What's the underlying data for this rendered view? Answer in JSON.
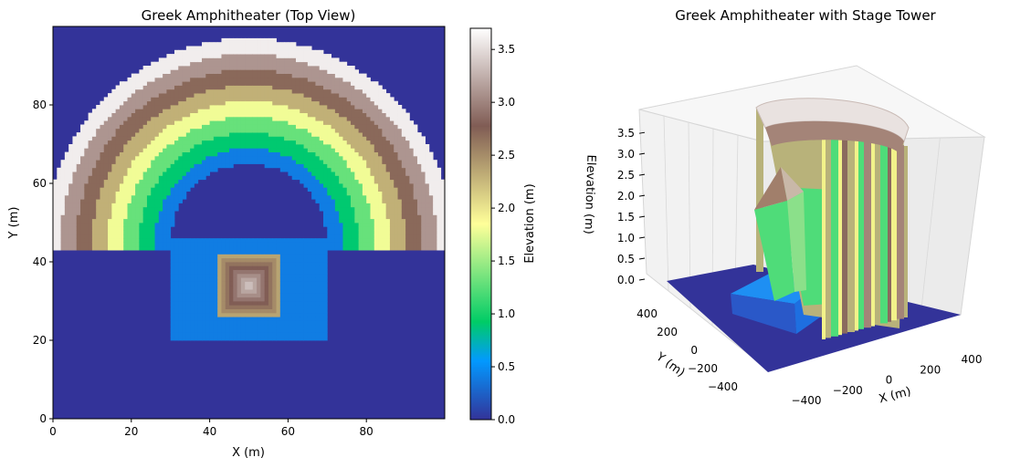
{
  "chart_data": [
    {
      "type": "heatmap",
      "title": "Greek Amphitheater (Top View)",
      "xlabel": "X (m)",
      "ylabel": "Y (m)",
      "xlim": [
        0,
        100
      ],
      "ylim": [
        0,
        100
      ],
      "xticks": [
        "0",
        "20",
        "40",
        "60",
        "80"
      ],
      "yticks": [
        "0",
        "20",
        "40",
        "60",
        "80"
      ],
      "colorbar": {
        "label": "Elevation (m)",
        "range": [
          0,
          3.7
        ],
        "ticks": [
          "0.0",
          "0.5",
          "1.0",
          "1.5",
          "2.0",
          "2.5",
          "3.0",
          "3.5"
        ],
        "colormap": "terrain"
      },
      "seating_center": [
        50,
        45
      ],
      "seating_tiers": [
        {
          "r_in": 20,
          "r_out": 24,
          "elevation": 0.4
        },
        {
          "r_in": 24,
          "r_out": 28,
          "elevation": 0.9
        },
        {
          "r_in": 28,
          "r_out": 32,
          "elevation": 1.3
        },
        {
          "r_in": 32,
          "r_out": 36,
          "elevation": 1.8
        },
        {
          "r_in": 36,
          "r_out": 40,
          "elevation": 2.3
        },
        {
          "r_in": 40,
          "r_out": 44,
          "elevation": 2.7
        },
        {
          "r_in": 44,
          "r_out": 48,
          "elevation": 3.1
        },
        {
          "r_in": 48,
          "r_out": 52,
          "elevation": 3.6
        }
      ],
      "stage": {
        "x": [
          30,
          70
        ],
        "y": [
          20,
          46
        ],
        "elevation": 0.4
      },
      "tower": {
        "x": [
          42,
          58
        ],
        "y": [
          26,
          42
        ],
        "base_elevation": 2.3,
        "peak_elevation": 3.4
      },
      "ground_elevation": 0.0
    },
    {
      "type": "surface3d",
      "title": "Greek Amphitheater with Stage Tower",
      "xlabel": "X (m)",
      "ylabel": "Y (m)",
      "zlabel": "Elevation (m)",
      "xticks": [
        "−400",
        "−200",
        "0",
        "200",
        "400"
      ],
      "yticks": [
        "−400",
        "−200",
        "0",
        "200",
        "400"
      ],
      "zticks": [
        "0.0",
        "0.5",
        "1.0",
        "1.5",
        "2.0",
        "2.5",
        "3.0",
        "3.5"
      ],
      "zlim": [
        0,
        3.7
      ]
    }
  ]
}
